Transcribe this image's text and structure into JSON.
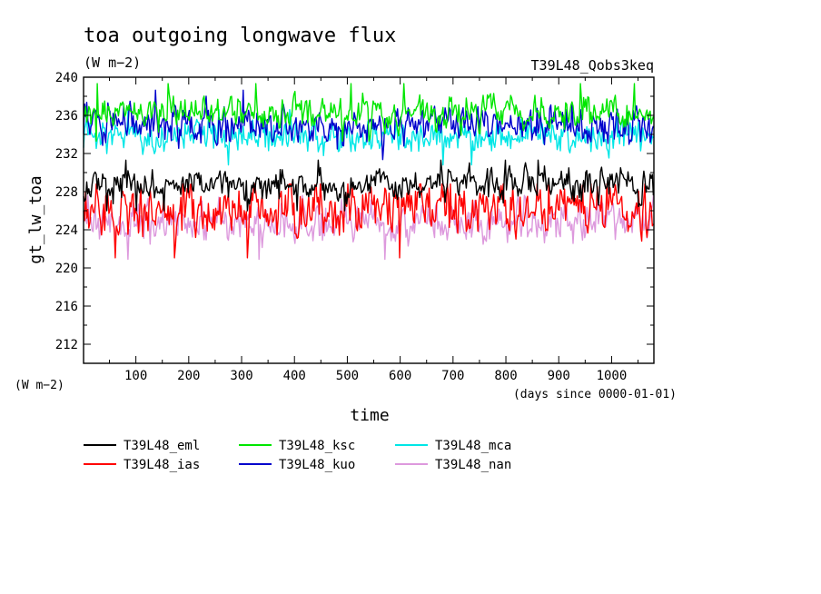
{
  "chart_data": {
    "type": "line",
    "title": "toa outgoing longwave flux",
    "units": "(W m−2)",
    "experiment_label": "T39L48_Qobs3keq",
    "xlabel": "time",
    "xunits": "(days since 0000-01-01)",
    "ylabel": "gt_lw_toa",
    "yunits": "(W m−2)",
    "xlim": [
      1,
      1080
    ],
    "ylim": [
      210,
      240
    ],
    "xticks": [
      100,
      200,
      300,
      400,
      500,
      600,
      700,
      800,
      900,
      1000
    ],
    "yticks": [
      212,
      216,
      220,
      224,
      228,
      232,
      236,
      240
    ],
    "grid": false,
    "legend_position": "bottom",
    "series": [
      {
        "name": "T39L48_eml",
        "color": "#000000",
        "mean": 228.7,
        "amp": 1.2,
        "min": 226.0,
        "max": 231.3
      },
      {
        "name": "T39L48_ias",
        "color": "#ff0000",
        "mean": 226.0,
        "amp": 1.9,
        "min": 219.8,
        "max": 228.8
      },
      {
        "name": "T39L48_ksc",
        "color": "#00e600",
        "mean": 236.2,
        "amp": 1.2,
        "min": 233.3,
        "max": 240.0
      },
      {
        "name": "T39L48_kuo",
        "color": "#0000cc",
        "mean": 235.0,
        "amp": 1.4,
        "min": 229.2,
        "max": 238.8
      },
      {
        "name": "T39L48_mca",
        "color": "#00e6e6",
        "mean": 233.8,
        "amp": 1.2,
        "min": 230.8,
        "max": 236.6
      },
      {
        "name": "T39L48_nan",
        "color": "#dd99dd",
        "mean": 224.8,
        "amp": 1.5,
        "min": 218.7,
        "max": 227.6
      }
    ]
  }
}
